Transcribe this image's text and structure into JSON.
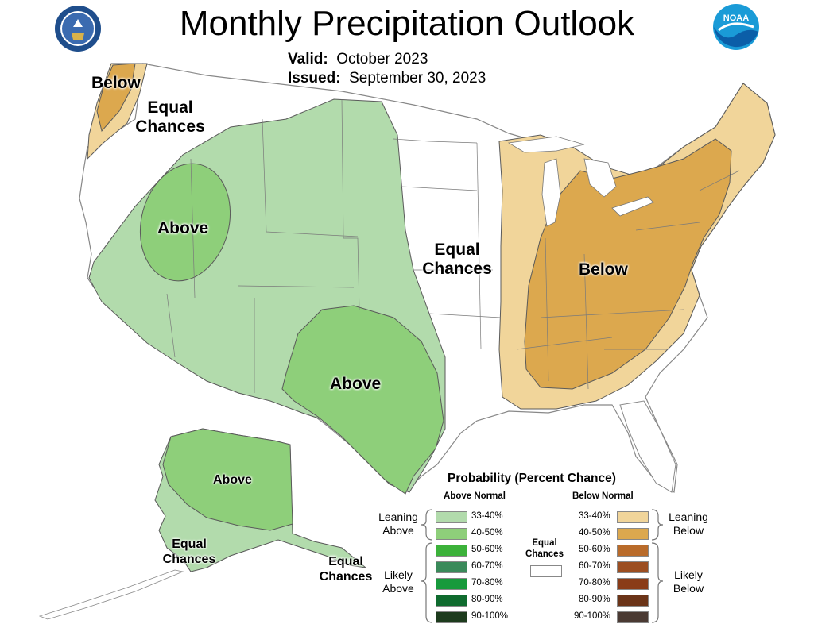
{
  "header": {
    "title": "Monthly Precipitation Outlook",
    "valid_label": "Valid:",
    "valid_value": "October 2023",
    "issued_label": "Issued:",
    "issued_value": "September 30, 2023"
  },
  "logos": {
    "left": "Department of Commerce seal",
    "right": "NOAA"
  },
  "map_labels": {
    "nw_below": "Below",
    "nw_equal_1": "Equal",
    "nw_equal_2": "Chances",
    "west_above": "Above",
    "south_above": "Above",
    "central_equal_1": "Equal",
    "central_equal_2": "Chances",
    "east_below": "Below",
    "ak_above": "Above",
    "ak_equal_1": "Equal",
    "ak_equal_2": "Chances",
    "ak_se_equal_1": "Equal",
    "ak_se_equal_2": "Chances"
  },
  "colors": {
    "above_33_40": "#b2dbac",
    "above_40_50": "#8ecf7a",
    "above_50_60": "#3cb23a",
    "above_60_70": "#3a8a5a",
    "above_70_80": "#179a3c",
    "above_80_90": "#0f6b2e",
    "above_90_100": "#1d3b1d",
    "below_33_40": "#f1d59a",
    "below_40_50": "#dca84e",
    "below_50_60": "#b96b2a",
    "below_60_70": "#9c4e21",
    "below_70_80": "#8a3c18",
    "below_80_90": "#6b3418",
    "below_90_100": "#4a3a33",
    "equal": "#ffffff",
    "boundary": "#5a5a5a"
  },
  "legend": {
    "title": "Probability (Percent Chance)",
    "above_header": "Above Normal",
    "below_header": "Below Normal",
    "above_rows": [
      "33-40%",
      "40-50%",
      "50-60%",
      "60-70%",
      "70-80%",
      "80-90%",
      "90-100%"
    ],
    "below_rows": [
      "33-40%",
      "40-50%",
      "50-60%",
      "60-70%",
      "70-80%",
      "80-90%",
      "90-100%"
    ],
    "leaning_above_1": "Leaning",
    "leaning_above_2": "Above",
    "likely_above_1": "Likely",
    "likely_above_2": "Above",
    "leaning_below_1": "Leaning",
    "leaning_below_2": "Below",
    "likely_below_1": "Likely",
    "likely_below_2": "Below",
    "equal_1": "Equal",
    "equal_2": "Chances"
  }
}
